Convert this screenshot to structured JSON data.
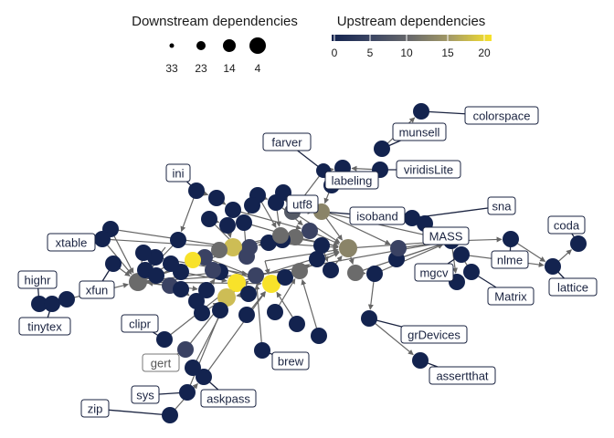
{
  "legend": {
    "size": {
      "title": "Downstream dependencies",
      "items": [
        {
          "label": "33",
          "r": 2.5
        },
        {
          "label": "23",
          "r": 5
        },
        {
          "label": "14",
          "r": 7
        },
        {
          "label": "4",
          "r": 9
        }
      ]
    },
    "color": {
      "title": "Upstream dependencies",
      "ticks": [
        "0",
        "5",
        "10",
        "15",
        "20"
      ],
      "colors": [
        "#13234f",
        "#3c4663",
        "#6b6b6b",
        "#9d9569",
        "#d9c447",
        "#f8e22a"
      ]
    }
  },
  "labels": [
    {
      "text": "colorspace"
    },
    {
      "text": "munsell"
    },
    {
      "text": "farver"
    },
    {
      "text": "viridisLite"
    },
    {
      "text": "labeling"
    },
    {
      "text": "ini"
    },
    {
      "text": "utf8"
    },
    {
      "text": "isoband"
    },
    {
      "text": "sna"
    },
    {
      "text": "coda"
    },
    {
      "text": "MASS"
    },
    {
      "text": "xtable"
    },
    {
      "text": "nlme"
    },
    {
      "text": "highr"
    },
    {
      "text": "xfun"
    },
    {
      "text": "mgcv"
    },
    {
      "text": "lattice"
    },
    {
      "text": "Matrix"
    },
    {
      "text": "tinytex"
    },
    {
      "text": "clipr"
    },
    {
      "text": "grDevices"
    },
    {
      "text": "gert"
    },
    {
      "text": "brew"
    },
    {
      "text": "assertthat"
    },
    {
      "text": "sys"
    },
    {
      "text": "askpass"
    },
    {
      "text": "zip"
    }
  ]
}
